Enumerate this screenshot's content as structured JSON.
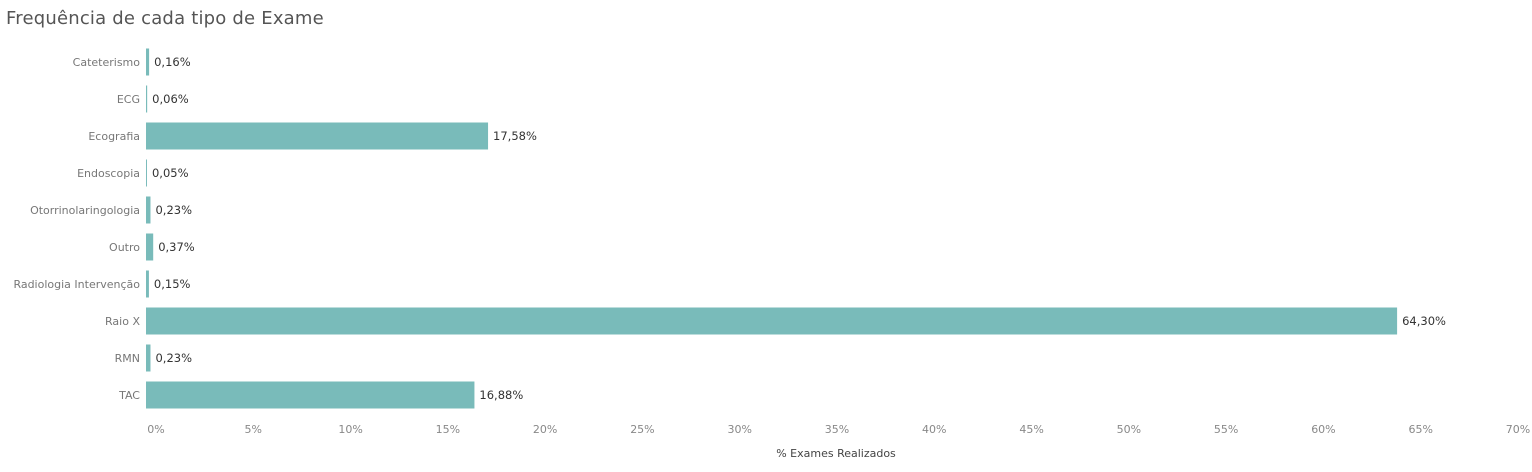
{
  "chart_data": {
    "type": "bar",
    "orientation": "horizontal",
    "title": "Frequência de cada tipo de Exame",
    "xlabel": "% Exames Realizados",
    "ylabel": "",
    "categories": [
      "Cateterismo",
      "ECG",
      "Ecografia",
      "Endoscopia",
      "Otorrinolaringologia",
      "Outro",
      "Radiologia Intervenção",
      "Raio X",
      "RMN",
      "TAC"
    ],
    "values": [
      0.16,
      0.06,
      17.58,
      0.05,
      0.23,
      0.37,
      0.15,
      64.3,
      0.23,
      16.88
    ],
    "value_labels": [
      "0,16%",
      "0,06%",
      "17,58%",
      "0,05%",
      "0,23%",
      "0,37%",
      "0,15%",
      "64,30%",
      "0,23%",
      "16,88%"
    ],
    "xlim": [
      0,
      70
    ],
    "x_ticks": [
      0,
      5,
      10,
      15,
      20,
      25,
      30,
      35,
      40,
      45,
      50,
      55,
      60,
      65,
      70
    ],
    "x_tick_labels": [
      "0%",
      "5%",
      "10%",
      "15%",
      "20%",
      "25%",
      "30%",
      "35%",
      "40%",
      "45%",
      "50%",
      "55%",
      "60%",
      "65%",
      "70%"
    ],
    "grid": false,
    "legend": "none",
    "bar_color": "#79BBBA"
  }
}
